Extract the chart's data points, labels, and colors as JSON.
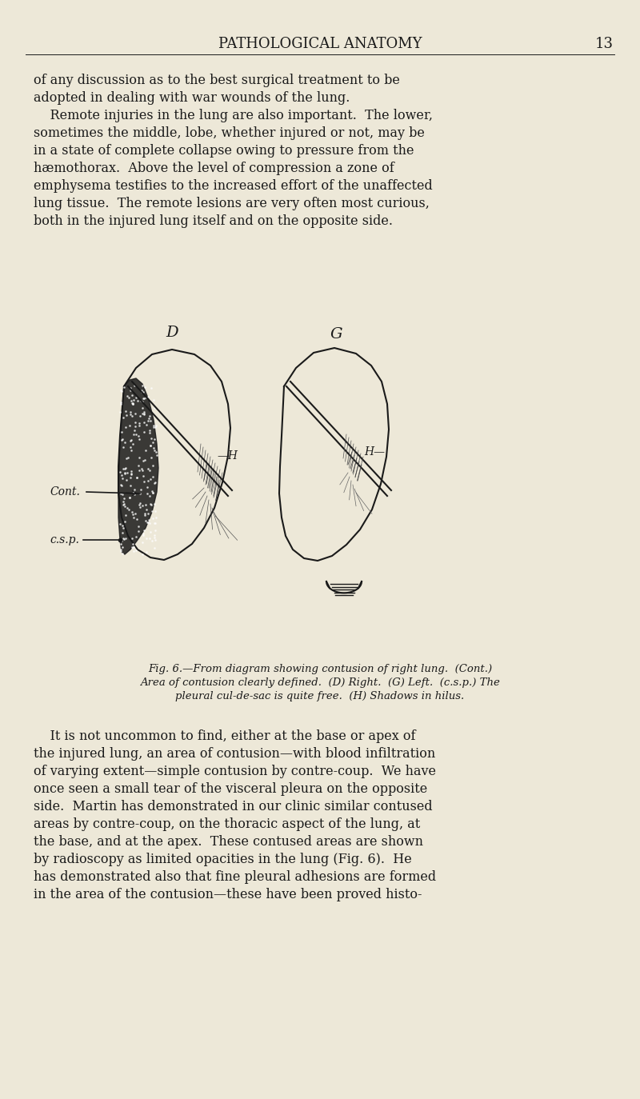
{
  "bg_color": "#EDE8D8",
  "text_color": "#1a1a1a",
  "page_title": "PATHOLOGICAL ANATOMY",
  "page_number": "13",
  "title_fontsize": 13,
  "body_fontsize": 11.5,
  "caption_fontsize": 9.5,
  "body_text_lines": [
    "of any discussion as to the best surgical treatment to be",
    "adopted in dealing with war wounds of the lung.",
    "    Remote injuries in the lung are also important.  The lower,",
    "sometimes the middle, lobe, whether injured or not, may be",
    "in a state of complete collapse owing to pressure from the",
    "hæmothorax.  Above the level of compression a zone of",
    "emphysema testifies to the increased effort of the unaffected",
    "lung tissue.  The remote lesions are very often most curious,",
    "both in the injured lung itself and on the opposite side."
  ],
  "caption_lines": [
    "Fig. 6.—From diagram showing contusion of right lung.  (Cont.)",
    "Area of contusion clearly defined.  (D) Right.  (G) Left.  (c.s.p.) The",
    "pleural cul-de-sac is quite free.  (H) Shadows in hilus."
  ],
  "body_text2_lines": [
    "    It is not uncommon to find, either at the base or apex of",
    "the injured lung, an area of contusion—with blood infiltration",
    "of varying extent—simple contusion by contre-coup.  We have",
    "once seen a small tear of the visceral pleura on the opposite",
    "side.  Martin has demonstrated in our clinic similar contused",
    "areas by contre-coup, on the thoracic aspect of the lung, at",
    "the base, and at the apex.  These contused areas are shown",
    "by radioscopy as limited opacities in the lung (Fig. 6).  He",
    "has demonstrated also that fine pleural adhesions are formed",
    "in the area of the contusion—these have been proved histo-"
  ]
}
